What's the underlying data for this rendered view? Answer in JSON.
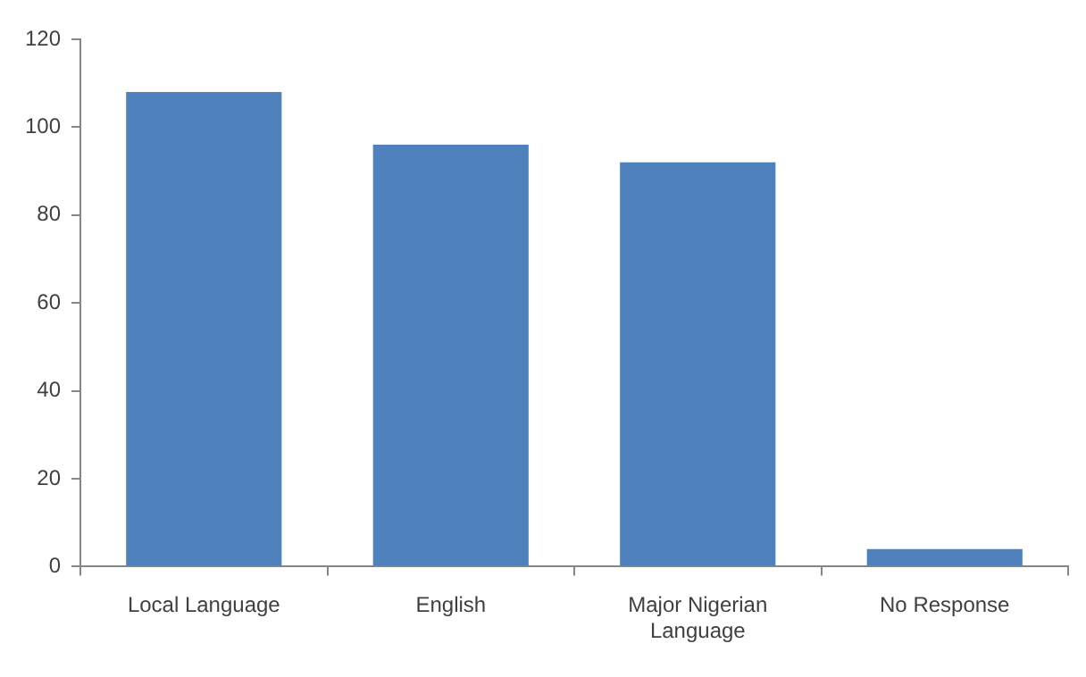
{
  "chart_data": {
    "type": "bar",
    "categories": [
      "Local Language",
      "English",
      "Major Nigerian Language",
      "No Response"
    ],
    "values": [
      108,
      96,
      92,
      4
    ],
    "color": "#4f81bd",
    "ylim": [
      0,
      120
    ],
    "yticks": [
      0,
      20,
      40,
      60,
      80,
      100,
      120
    ],
    "grid": false,
    "legend": false
  }
}
